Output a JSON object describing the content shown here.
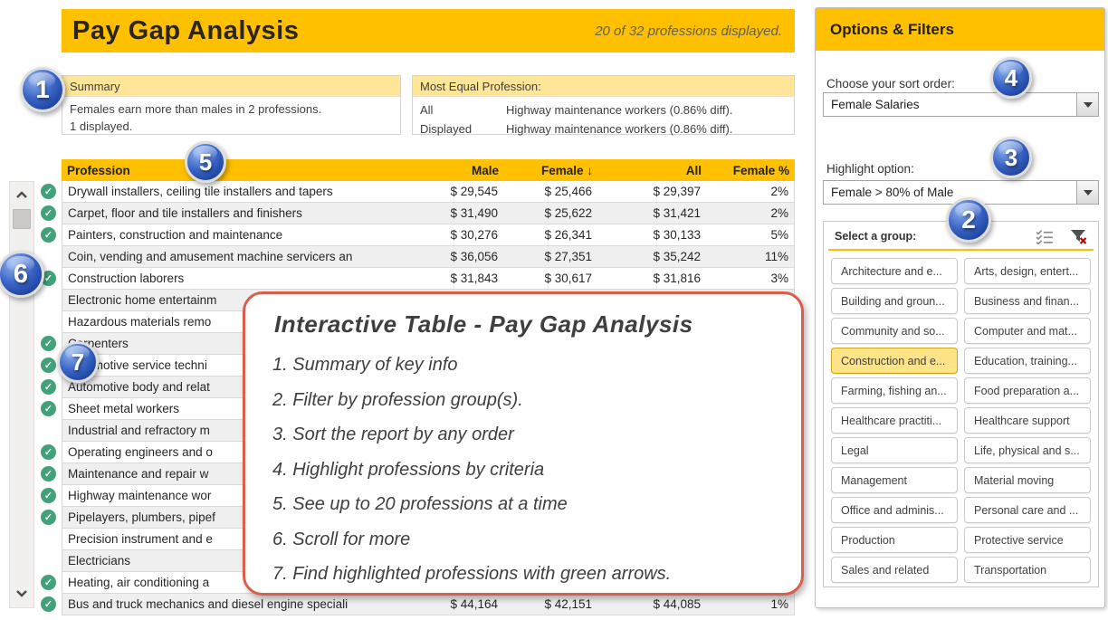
{
  "colors": {
    "accent": "#FFC000",
    "pale_accent": "#FFE699",
    "selected_group": "#FFE487",
    "table_alt_row": "#EFEFEF",
    "badge_blue": "#2B56B8",
    "check_green": "#3FA37A",
    "callout_border": "#D95F4D"
  },
  "header": {
    "title": "Pay Gap Analysis",
    "note": "20 of 32 professions displayed."
  },
  "summary": {
    "title": "Summary",
    "line1": "Females earn more than males in 2 professions.",
    "line2": "1 displayed."
  },
  "most_equal": {
    "title": "Most Equal Profession:",
    "rows": [
      {
        "label": "All",
        "value": "Highway maintenance workers (0.86% diff)."
      },
      {
        "label": "Displayed",
        "value": "Highway maintenance workers (0.86% diff)."
      }
    ]
  },
  "table": {
    "columns": [
      "Profession",
      "Male",
      "Female ↓",
      "All",
      "Female %"
    ],
    "rows": [
      {
        "profession": "Drywall installers, ceiling tile installers and tapers",
        "male": "$ 29,545",
        "female": "$ 25,466",
        "all": "$ 29,397",
        "female_pct": "2%",
        "check": true
      },
      {
        "profession": "Carpet, floor and tile installers and finishers",
        "male": "$ 31,490",
        "female": "$ 25,622",
        "all": "$ 31,421",
        "female_pct": "2%",
        "check": true
      },
      {
        "profession": "Painters, construction and maintenance",
        "male": "$ 30,276",
        "female": "$ 26,341",
        "all": "$ 30,133",
        "female_pct": "5%",
        "check": true
      },
      {
        "profession": "Coin, vending and amusement machine servicers an",
        "male": "$ 36,056",
        "female": "$ 27,351",
        "all": "$ 35,242",
        "female_pct": "11%",
        "check": false
      },
      {
        "profession": "Construction laborers",
        "male": "$ 31,843",
        "female": "$ 30,617",
        "all": "$ 31,816",
        "female_pct": "3%",
        "check": true
      },
      {
        "profession": "Electronic home entertainm",
        "male": "",
        "female": "",
        "all": "",
        "female_pct": "",
        "check": false
      },
      {
        "profession": "Hazardous materials remo",
        "male": "",
        "female": "",
        "all": "",
        "female_pct": "",
        "check": false
      },
      {
        "profession": "Carpenters",
        "male": "",
        "female": "",
        "all": "",
        "female_pct": "",
        "check": true
      },
      {
        "profession": "Automotive service techni",
        "male": "",
        "female": "",
        "all": "",
        "female_pct": "",
        "check": true
      },
      {
        "profession": "Automotive body and relat",
        "male": "",
        "female": "",
        "all": "",
        "female_pct": "",
        "check": true
      },
      {
        "profession": "Sheet metal workers",
        "male": "",
        "female": "",
        "all": "",
        "female_pct": "",
        "check": true
      },
      {
        "profession": "Industrial and refractory m",
        "male": "",
        "female": "",
        "all": "",
        "female_pct": "",
        "check": false
      },
      {
        "profession": "Operating engineers and o",
        "male": "",
        "female": "",
        "all": "",
        "female_pct": "",
        "check": true
      },
      {
        "profession": "Maintenance and repair w",
        "male": "",
        "female": "",
        "all": "",
        "female_pct": "",
        "check": true
      },
      {
        "profession": "Highway maintenance wor",
        "male": "",
        "female": "",
        "all": "",
        "female_pct": "",
        "check": true
      },
      {
        "profession": "Pipelayers, plumbers, pipef",
        "male": "",
        "female": "",
        "all": "",
        "female_pct": "",
        "check": true
      },
      {
        "profession": "Precision instrument and e",
        "male": "",
        "female": "",
        "all": "",
        "female_pct": "",
        "check": false
      },
      {
        "profession": "Electricians",
        "male": "",
        "female": "",
        "all": "",
        "female_pct": "",
        "check": false
      },
      {
        "profession": "Heating, air conditioning a",
        "male": "",
        "female": "",
        "all": "",
        "female_pct": "",
        "check": true
      },
      {
        "profession": "Bus and truck mechanics and diesel engine speciali",
        "male": "$ 44,164",
        "female": "$ 42,151",
        "all": "$ 44,085",
        "female_pct": "1%",
        "check": true
      }
    ]
  },
  "callout": {
    "title": "Interactive Table - Pay Gap Analysis",
    "items": [
      "1. Summary of key info",
      "2. Filter by profession group(s).",
      "3. Sort the report by any order",
      "4. Highlight professions by criteria",
      "5. See up to 20 professions at a time",
      "6. Scroll for more",
      "7. Find highlighted professions with green arrows."
    ]
  },
  "panel": {
    "title": "Options & Filters",
    "sort": {
      "label": "Choose your sort order:",
      "value": "Female Salaries"
    },
    "highlight": {
      "label": "Highlight option:",
      "value": "Female > 80% of Male"
    },
    "group": {
      "label": "Select a group:",
      "icons": [
        "select-all-checklist-icon",
        "clear-filter-icon"
      ],
      "buttons": [
        {
          "label": "Architecture and e...",
          "selected": false
        },
        {
          "label": "Arts, design, entert...",
          "selected": false
        },
        {
          "label": "Building and groun...",
          "selected": false
        },
        {
          "label": "Business and finan...",
          "selected": false
        },
        {
          "label": "Community and so...",
          "selected": false
        },
        {
          "label": "Computer and mat...",
          "selected": false
        },
        {
          "label": "Construction and e...",
          "selected": true
        },
        {
          "label": "Education, training...",
          "selected": false
        },
        {
          "label": "Farming, fishing an...",
          "selected": false
        },
        {
          "label": "Food preparation a...",
          "selected": false
        },
        {
          "label": "Healthcare practiti...",
          "selected": false
        },
        {
          "label": "Healthcare support",
          "selected": false
        },
        {
          "label": "Legal",
          "selected": false
        },
        {
          "label": "Life, physical and s...",
          "selected": false
        },
        {
          "label": "Management",
          "selected": false
        },
        {
          "label": "Material moving",
          "selected": false
        },
        {
          "label": "Office and adminis...",
          "selected": false
        },
        {
          "label": "Personal care and ...",
          "selected": false
        },
        {
          "label": "Production",
          "selected": false
        },
        {
          "label": "Protective service",
          "selected": false
        },
        {
          "label": "Sales and related",
          "selected": false
        },
        {
          "label": "Transportation",
          "selected": false
        }
      ]
    }
  },
  "badges": [
    "1",
    "2",
    "3",
    "4",
    "5",
    "6",
    "7"
  ],
  "icons": {
    "scroll_up": "chevron-up",
    "scroll_down": "chevron-down",
    "check": "check-circle",
    "sort": "arrow-down",
    "select_all": "checklist",
    "clear_filter": "funnel-with-red-x",
    "dropdown": "triangle-down"
  }
}
